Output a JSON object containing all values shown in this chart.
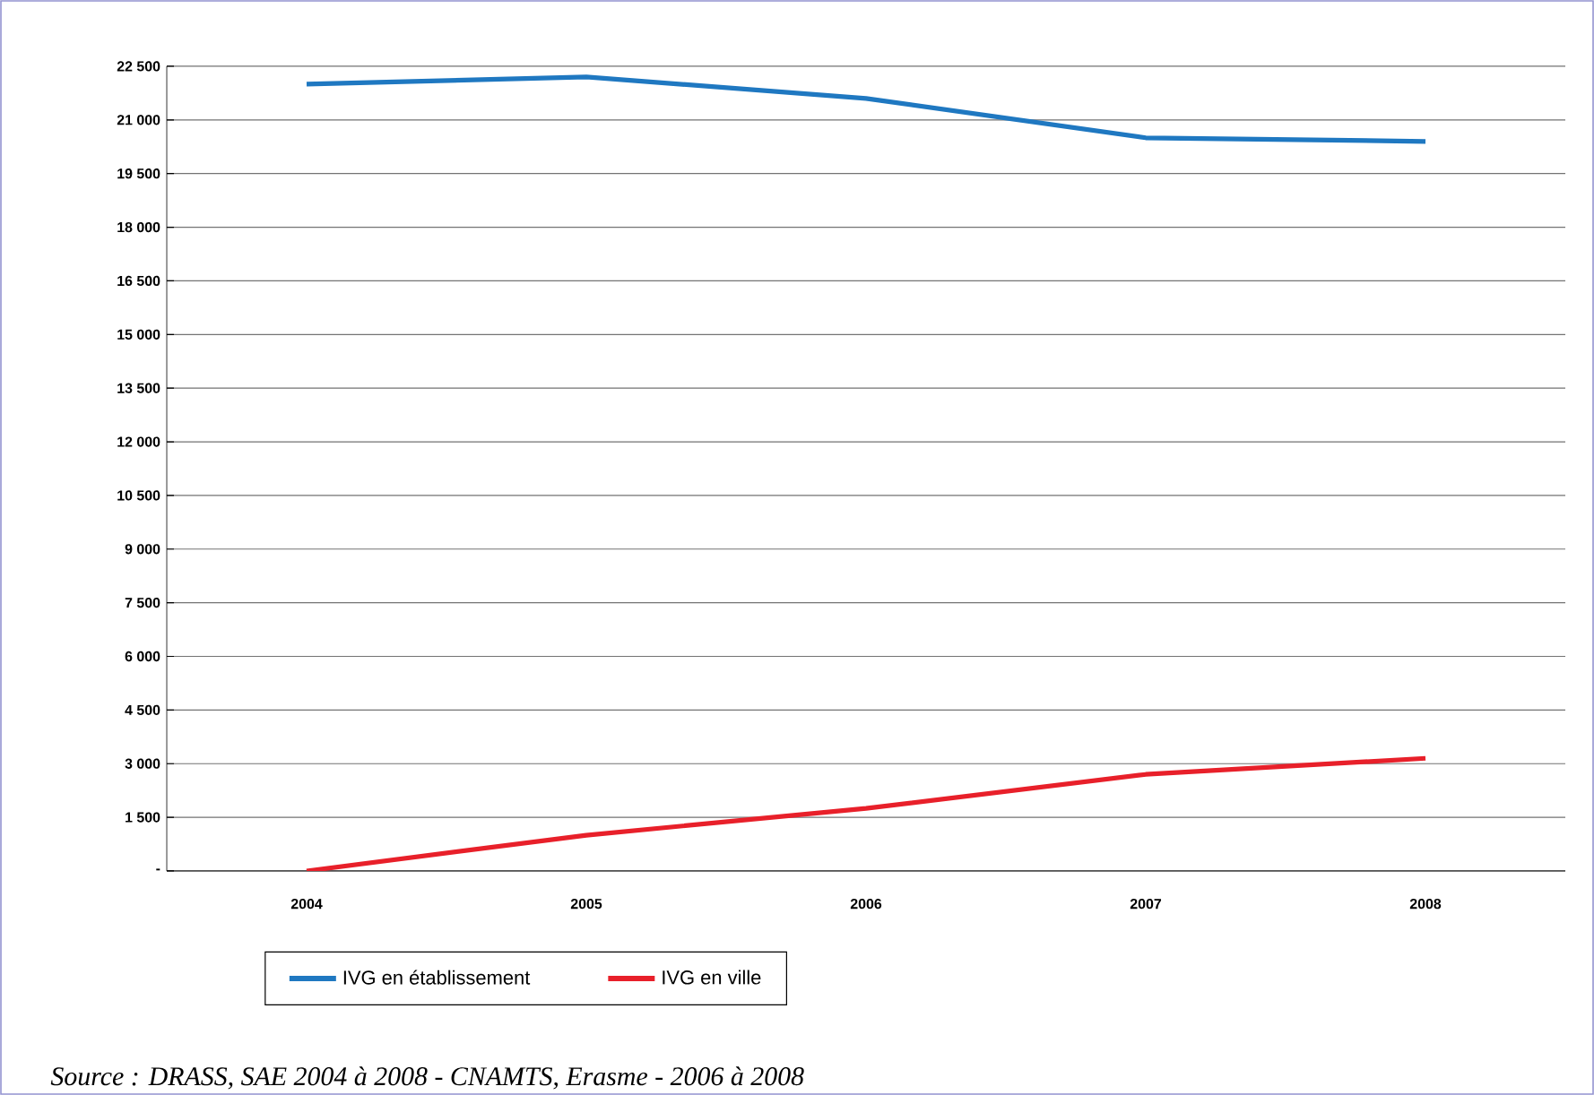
{
  "chart_data": {
    "type": "line",
    "categories": [
      "2004",
      "2005",
      "2006",
      "2007",
      "2008"
    ],
    "series": [
      {
        "name": "IVG en établissement",
        "color": "#1f78c1",
        "values": [
          22000,
          22200,
          21600,
          20500,
          20400
        ]
      },
      {
        "name": "IVG en ville",
        "color": "#e8202a",
        "values": [
          0,
          1000,
          1750,
          2700,
          3150
        ]
      }
    ],
    "ylim": [
      0,
      22500
    ],
    "yticks": [
      {
        "value": 0,
        "label": "-"
      },
      {
        "value": 1500,
        "label": "1 500"
      },
      {
        "value": 3000,
        "label": "3 000"
      },
      {
        "value": 4500,
        "label": "4 500"
      },
      {
        "value": 6000,
        "label": "6 000"
      },
      {
        "value": 7500,
        "label": "7 500"
      },
      {
        "value": 9000,
        "label": "9 000"
      },
      {
        "value": 10500,
        "label": "10 500"
      },
      {
        "value": 12000,
        "label": "12 000"
      },
      {
        "value": 13500,
        "label": "13 500"
      },
      {
        "value": 15000,
        "label": "15 000"
      },
      {
        "value": 16500,
        "label": "16 500"
      },
      {
        "value": 18000,
        "label": "18 000"
      },
      {
        "value": 19500,
        "label": "19 500"
      },
      {
        "value": 21000,
        "label": "21 000"
      },
      {
        "value": 22500,
        "label": "22 500"
      }
    ],
    "grid": "y",
    "legend": "bottom",
    "marker": "none",
    "line_style": "solid",
    "annotations": [
      "Source : DRASS, SAE 2004 à 2008 - CNAMTS, Erasme - 2006 à 2008"
    ]
  }
}
